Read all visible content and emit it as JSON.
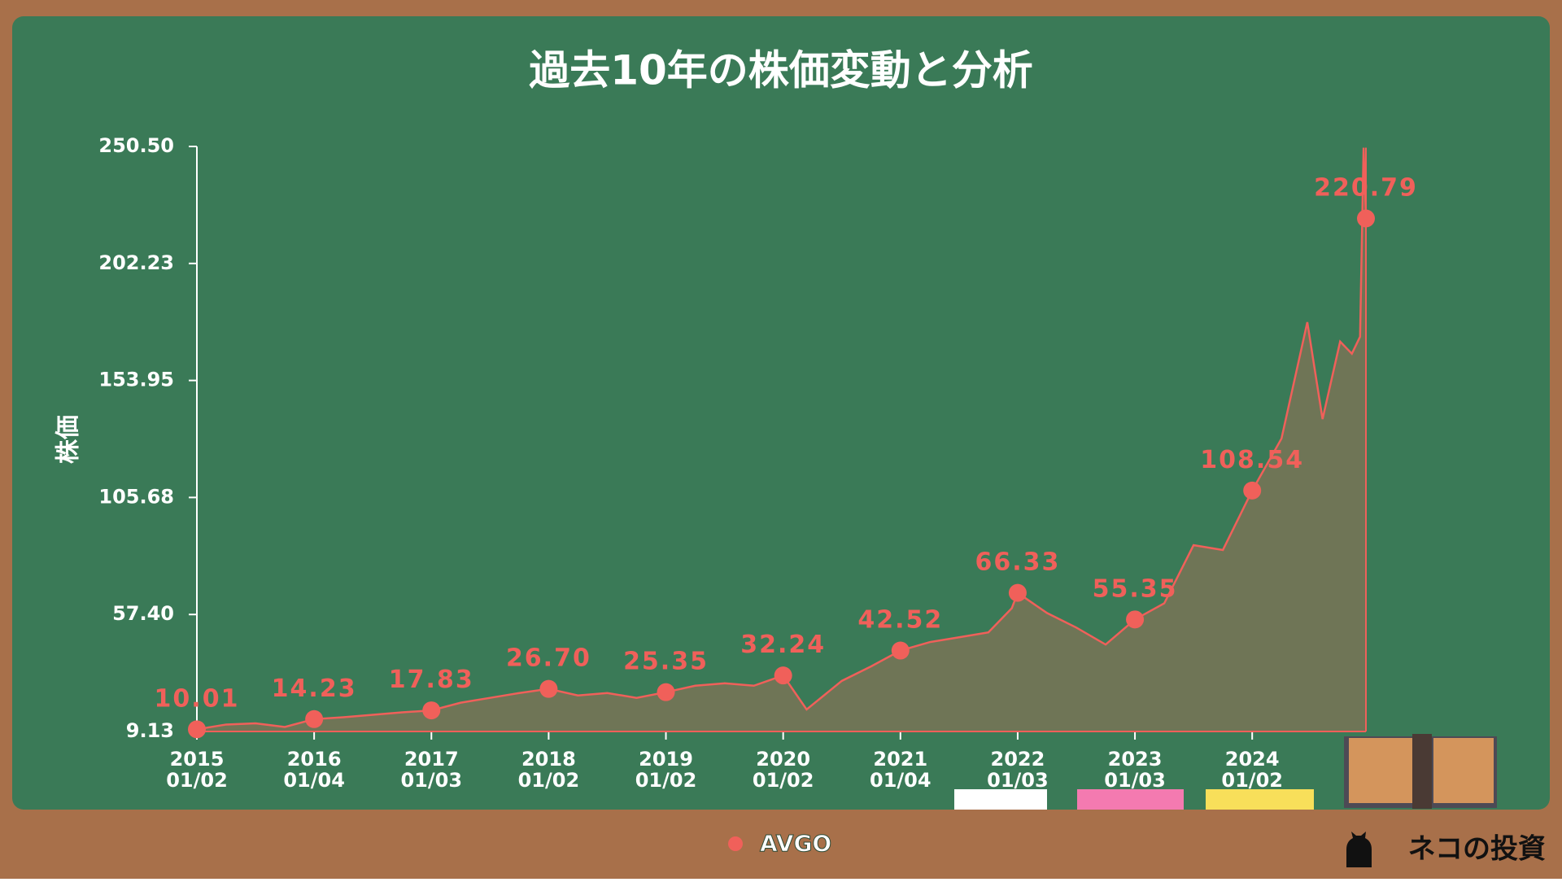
{
  "chart_data": {
    "type": "line",
    "title": "過去10年の株価変動と分析",
    "ylabel": "株価",
    "brand": "ネコの投資",
    "xlim": [
      2015,
      2024.97
    ],
    "xticks": [
      {
        "value": 2015,
        "label": "2015 01/02"
      },
      {
        "value": 2016,
        "label": "2016 01/04"
      },
      {
        "value": 2017,
        "label": "2017 01/03"
      },
      {
        "value": 2018,
        "label": "2018 01/02"
      },
      {
        "value": 2019,
        "label": "2019 01/02"
      },
      {
        "value": 2020,
        "label": "2020 01/02"
      },
      {
        "value": 2021,
        "label": "2021 01/04"
      },
      {
        "value": 2022,
        "label": "2022 01/03"
      },
      {
        "value": 2023,
        "label": "2023 01/03"
      },
      {
        "value": 2024,
        "label": "2024 01/02"
      }
    ],
    "ylim": [
      9.13,
      250.5
    ],
    "yticks": [
      9.13,
      {
        "value": 57.4,
        "label": "57.40"
      },
      105.68,
      153.95,
      202.23,
      {
        "value": 250.5,
        "label": "250.50"
      }
    ],
    "series": [
      {
        "name": "AVGO",
        "color": "#f0605a",
        "x": [
          2015,
          2015.25,
          2015.5,
          2015.75,
          2016,
          2016.25,
          2016.5,
          2016.75,
          2017,
          2017.25,
          2017.5,
          2017.75,
          2018,
          2018.25,
          2018.5,
          2018.75,
          2019,
          2019.25,
          2019.5,
          2019.75,
          2020,
          2020.2,
          2020.5,
          2020.75,
          2021,
          2021.25,
          2021.5,
          2021.75,
          2021.95,
          2022,
          2022.25,
          2022.5,
          2022.75,
          2023,
          2023.25,
          2023.5,
          2023.75,
          2024,
          2024.25,
          2024.47,
          2024.6,
          2024.75,
          2024.85,
          2024.92,
          2024.95,
          2024.97
        ],
        "values": [
          10.01,
          12,
          12.5,
          11,
          14.23,
          15,
          16,
          17,
          17.83,
          21,
          23,
          25,
          26.7,
          24,
          25,
          23,
          25.35,
          28,
          29,
          28,
          32.24,
          18.2,
          30,
          36,
          42.52,
          46,
          48,
          50,
          60,
          66.33,
          58,
          52,
          45,
          55.35,
          62,
          86,
          84,
          108.54,
          130,
          178,
          138,
          170,
          165,
          172,
          250,
          220.79
        ]
      }
    ],
    "annotations": {
      "x": [
        2015,
        2016,
        2017,
        2018,
        2019,
        2020,
        2021,
        2022,
        2023,
        2024,
        2024.97
      ],
      "values": [
        10.01,
        14.23,
        17.83,
        26.7,
        25.35,
        32.24,
        42.52,
        66.33,
        55.35,
        108.54,
        220.79
      ],
      "value_labels": [
        "10.01",
        "14.23",
        "17.83",
        "26.70",
        "25.35",
        "32.24",
        "42.52",
        "66.33",
        "55.35",
        "108.54",
        "220.79"
      ]
    }
  }
}
